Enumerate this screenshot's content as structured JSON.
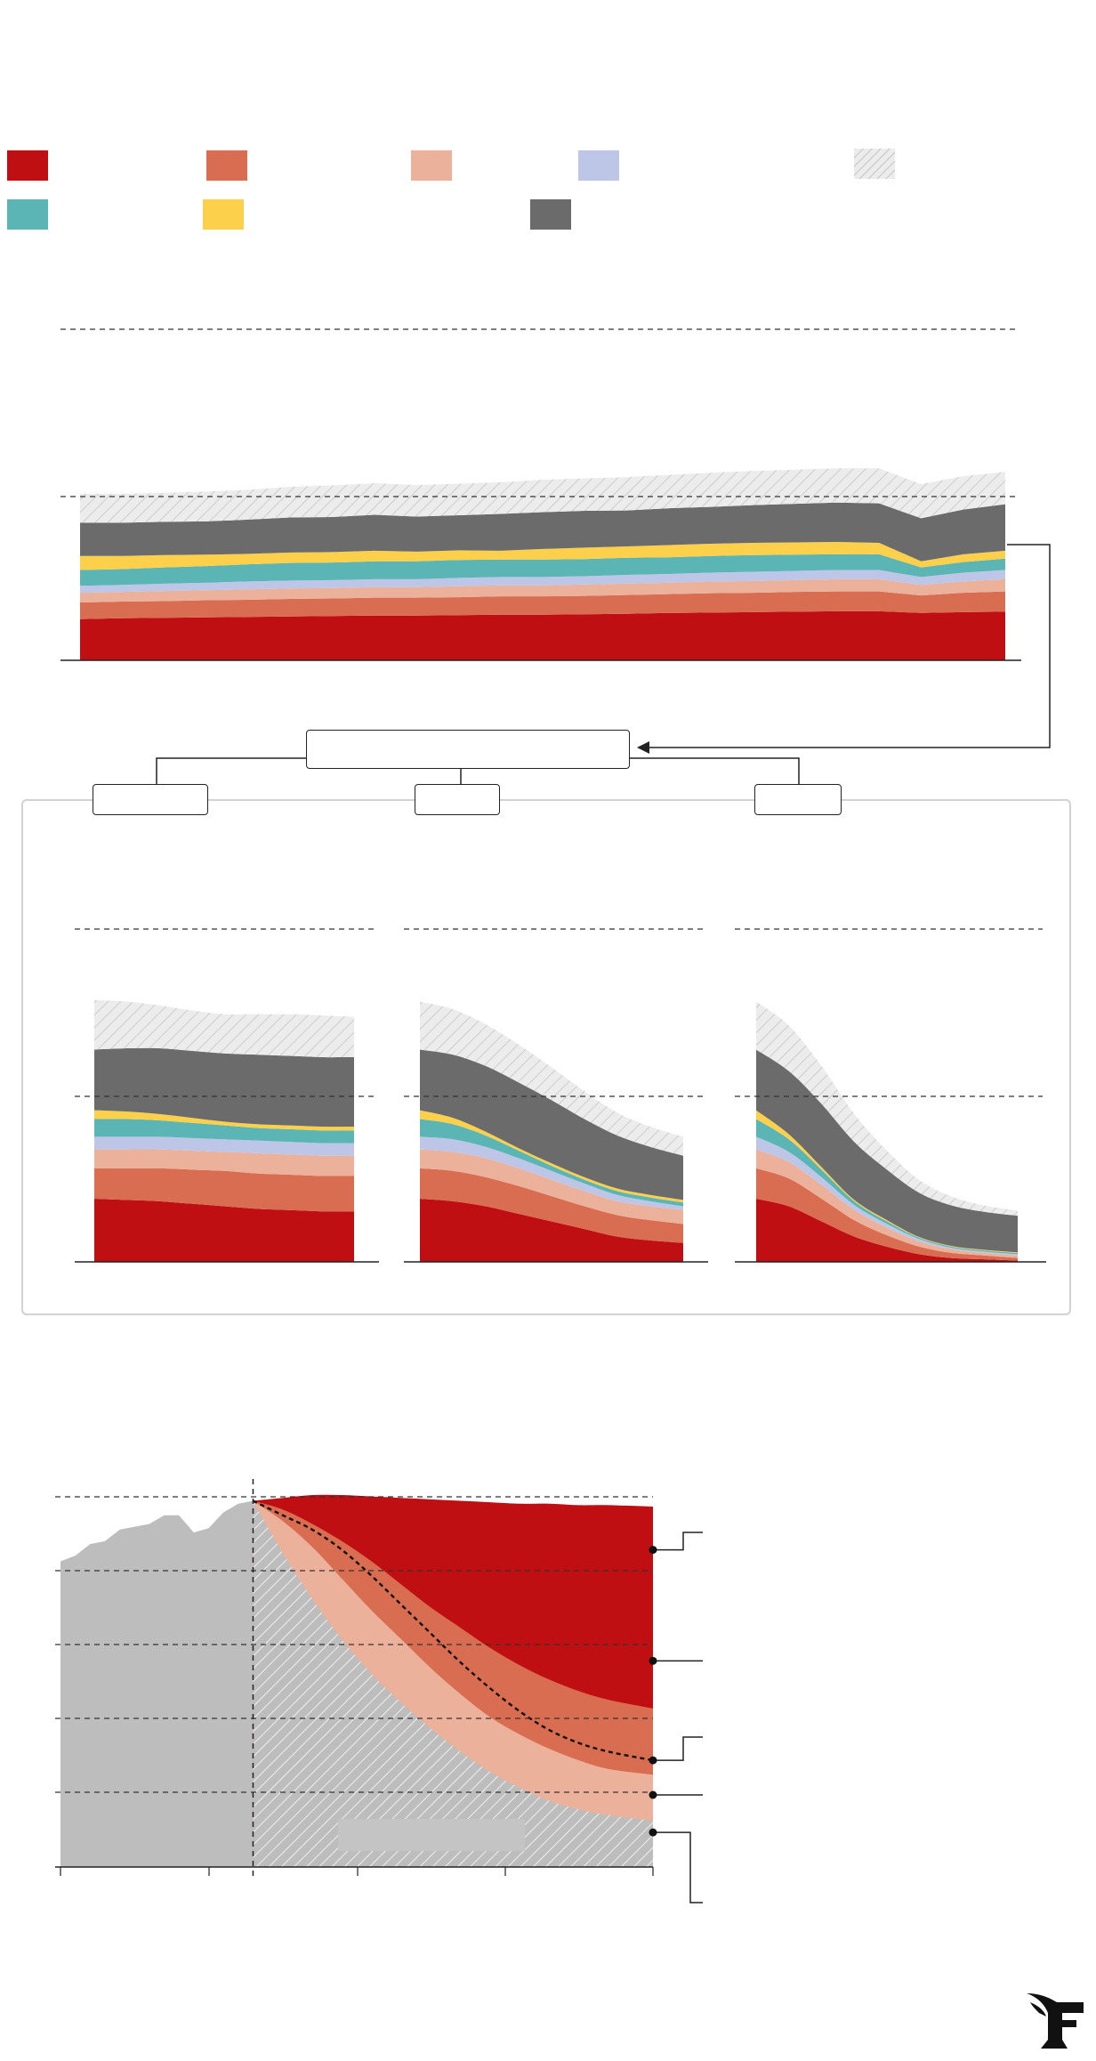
{
  "legend": {
    "items": [
      {
        "key": "cat_red",
        "label": "",
        "color": "#c00f12"
      },
      {
        "key": "cat_orange",
        "label": "",
        "color": "#d96d51"
      },
      {
        "key": "cat_salmon",
        "label": "",
        "color": "#ebb19a"
      },
      {
        "key": "cat_lavender",
        "label": "",
        "color": "#bdc6e6"
      },
      {
        "key": "cat_hatched",
        "label": "",
        "color": "#e8e8e8"
      },
      {
        "key": "cat_teal",
        "label": "",
        "color": "#5bb5b5"
      },
      {
        "key": "cat_yellow",
        "label": "",
        "color": "#fdd04b"
      },
      {
        "key": "cat_grey",
        "label": "",
        "color": "#6b6b6b"
      }
    ]
  },
  "scenarios": {
    "center_box_label": "",
    "labels": [
      "",
      "",
      ""
    ]
  },
  "chart_data": [
    {
      "type": "area",
      "stacked": true,
      "x": [
        0,
        1,
        2,
        3,
        4,
        5,
        6,
        7,
        8,
        9,
        10,
        11,
        12,
        13,
        14,
        15,
        16,
        17,
        18,
        19,
        20,
        21,
        22
      ],
      "series": [
        {
          "key": "cat_red",
          "values": [
            47,
            48,
            48.5,
            49,
            49.5,
            50,
            50.5,
            51,
            51,
            51.5,
            52,
            52,
            52.5,
            53,
            54,
            54.5,
            55,
            55.5,
            56,
            56,
            54,
            55,
            55.5
          ]
        },
        {
          "key": "cat_orange",
          "values": [
            19,
            19,
            19,
            19.5,
            19.5,
            20,
            20,
            20.5,
            20.5,
            20.5,
            21,
            21,
            21,
            21.5,
            21.5,
            22,
            22,
            22.5,
            22.5,
            22.5,
            20,
            22,
            23
          ]
        },
        {
          "key": "cat_salmon",
          "values": [
            11,
            11,
            11.5,
            11.5,
            12,
            12,
            12,
            12,
            12,
            12.5,
            12.5,
            12.5,
            13,
            13,
            13,
            13.5,
            13.5,
            13.5,
            14,
            14,
            12,
            13,
            14
          ]
        },
        {
          "key": "cat_lavender",
          "values": [
            8,
            8,
            8.5,
            8.5,
            9,
            9,
            9,
            9,
            9,
            9.5,
            9.5,
            9.5,
            9.5,
            10,
            10,
            10,
            10.5,
            10.5,
            10.5,
            10.5,
            9,
            10,
            10.5
          ]
        },
        {
          "key": "cat_teal",
          "values": [
            18,
            18,
            18.5,
            19,
            19.5,
            20,
            20,
            20.5,
            20.5,
            20.5,
            20,
            20,
            19.5,
            19.5,
            19,
            19,
            19,
            18.5,
            18,
            18,
            11,
            12,
            13
          ]
        },
        {
          "key": "cat_yellow",
          "values": [
            16,
            15,
            14,
            13,
            12,
            12,
            12,
            12,
            11,
            11,
            10,
            12,
            13,
            13,
            14,
            14,
            14,
            14,
            14,
            13,
            7,
            9,
            9
          ]
        },
        {
          "key": "cat_grey",
          "values": [
            38,
            38,
            38,
            38,
            39,
            40,
            40,
            41,
            40,
            40,
            42,
            42,
            42,
            41,
            42,
            42,
            43,
            44,
            45,
            45,
            49,
            51,
            53
          ]
        },
        {
          "key": "cat_hatched",
          "values": [
            33,
            33,
            33,
            34,
            34,
            35,
            36,
            36,
            36,
            36,
            36,
            37,
            37,
            38,
            38,
            39,
            39,
            39,
            39,
            40,
            39,
            38,
            37
          ]
        }
      ],
      "xlabel": "",
      "ylabel": "",
      "grid": true
    },
    {
      "type": "area",
      "stacked": true,
      "x": [
        0,
        1,
        2,
        3,
        4,
        5,
        6,
        7,
        8
      ],
      "series": [
        {
          "key": "cat_red",
          "values": [
            50,
            49,
            48,
            46,
            44,
            42,
            41,
            40,
            40
          ]
        },
        {
          "key": "cat_orange",
          "values": [
            24,
            25,
            26,
            27,
            28,
            28,
            28,
            28,
            28
          ]
        },
        {
          "key": "cat_salmon",
          "values": [
            15,
            15,
            15,
            15,
            15,
            16,
            16,
            16,
            16
          ]
        },
        {
          "key": "cat_lavender",
          "values": [
            10,
            10,
            10,
            10,
            10,
            10,
            10,
            10,
            10
          ]
        },
        {
          "key": "cat_teal",
          "values": [
            14,
            14,
            13,
            12,
            11,
            10,
            10,
            10,
            10
          ]
        },
        {
          "key": "cat_yellow",
          "values": [
            7,
            6,
            5,
            4,
            3,
            3,
            3,
            3,
            3
          ]
        },
        {
          "key": "cat_grey",
          "values": [
            48,
            50,
            52,
            53,
            54,
            55,
            55,
            55,
            55
          ]
        },
        {
          "key": "cat_hatched",
          "values": [
            39,
            37,
            34,
            32,
            31,
            32,
            33,
            33,
            32
          ]
        }
      ]
    },
    {
      "type": "area",
      "stacked": true,
      "x": [
        0,
        1,
        2,
        3,
        4,
        5,
        6,
        7,
        8
      ],
      "series": [
        {
          "key": "cat_red",
          "values": [
            50,
            48,
            44,
            38,
            32,
            26,
            20,
            17,
            15
          ]
        },
        {
          "key": "cat_orange",
          "values": [
            24,
            24,
            23,
            22,
            20,
            18,
            17,
            16,
            15
          ]
        },
        {
          "key": "cat_salmon",
          "values": [
            15,
            15,
            15,
            14,
            13,
            12,
            11,
            11,
            11
          ]
        },
        {
          "key": "cat_lavender",
          "values": [
            10,
            10,
            9,
            8,
            7,
            6,
            5,
            4,
            3
          ]
        },
        {
          "key": "cat_teal",
          "values": [
            14,
            12,
            9,
            6,
            4,
            3,
            3,
            3,
            3
          ]
        },
        {
          "key": "cat_yellow",
          "values": [
            7,
            5,
            3,
            2,
            2,
            2,
            2,
            2,
            2
          ]
        },
        {
          "key": "cat_grey",
          "values": [
            48,
            50,
            52,
            52,
            50,
            46,
            42,
            38,
            35
          ]
        },
        {
          "key": "cat_hatched",
          "values": [
            38,
            36,
            33,
            30,
            26,
            22,
            18,
            16,
            15
          ]
        }
      ]
    },
    {
      "type": "area",
      "stacked": true,
      "x": [
        0,
        1,
        2,
        3,
        4,
        5,
        6,
        7,
        8
      ],
      "series": [
        {
          "key": "cat_red",
          "values": [
            50,
            44,
            32,
            20,
            12,
            6,
            3,
            2,
            1
          ]
        },
        {
          "key": "cat_orange",
          "values": [
            24,
            22,
            18,
            13,
            9,
            6,
            4,
            3,
            2
          ]
        },
        {
          "key": "cat_salmon",
          "values": [
            15,
            13,
            11,
            8,
            6,
            4,
            3,
            2,
            2
          ]
        },
        {
          "key": "cat_lavender",
          "values": [
            10,
            8,
            6,
            4,
            3,
            2,
            1,
            1,
            1
          ]
        },
        {
          "key": "cat_teal",
          "values": [
            14,
            10,
            6,
            3,
            2,
            1,
            1,
            1,
            1
          ]
        },
        {
          "key": "cat_yellow",
          "values": [
            7,
            4,
            2,
            1,
            1,
            0.5,
            0.5,
            0.5,
            0.5
          ]
        },
        {
          "key": "cat_grey",
          "values": [
            48,
            50,
            50,
            46,
            40,
            35,
            32,
            30,
            29
          ]
        },
        {
          "key": "cat_hatched",
          "values": [
            38,
            36,
            30,
            22,
            15,
            10,
            7,
            5,
            4
          ]
        }
      ]
    },
    {
      "type": "area",
      "historical": {
        "x": [
          0,
          1,
          2,
          3,
          4,
          5,
          6,
          7,
          8,
          9,
          10,
          11,
          12,
          13
        ],
        "values": [
          212,
          216,
          224,
          226,
          234,
          236,
          238,
          244,
          244,
          232,
          235,
          246,
          252,
          254
        ]
      },
      "projection_x": [
        13,
        15,
        17,
        19,
        21,
        23,
        25,
        27,
        29,
        31,
        33,
        35,
        37,
        40
      ],
      "series": [
        {
          "key": "cat_red",
          "values": [
            254,
            256,
            258,
            258,
            257,
            256,
            255,
            254,
            253,
            252,
            252,
            251,
            251,
            250
          ]
        },
        {
          "key": "cat_orange",
          "values": [
            254,
            248,
            238,
            226,
            212,
            196,
            180,
            166,
            152,
            140,
            130,
            122,
            116,
            110
          ]
        },
        {
          "key": "cat_salmon",
          "values": [
            254,
            240,
            222,
            200,
            178,
            158,
            138,
            120,
            104,
            92,
            82,
            74,
            68,
            64
          ]
        },
        {
          "key": "cat_hatched",
          "values": [
            254,
            218,
            186,
            158,
            134,
            114,
            96,
            80,
            66,
            55,
            46,
            40,
            36,
            32
          ]
        }
      ],
      "dashed_line": [
        254,
        244,
        234,
        220,
        202,
        182,
        162,
        142,
        124,
        108,
        95,
        86,
        80,
        74
      ],
      "ylim": [
        0,
        254
      ],
      "markers_y": [
        220,
        143,
        74,
        50,
        24
      ]
    }
  ]
}
